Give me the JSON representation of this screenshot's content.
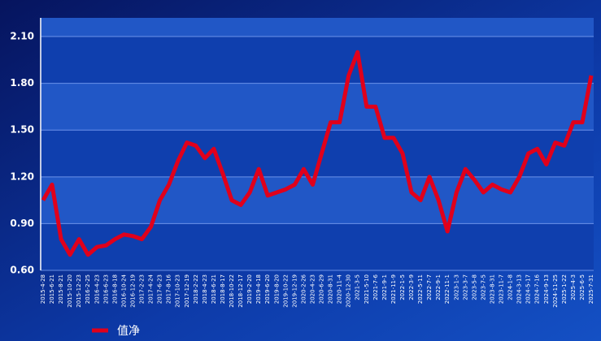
{
  "chart_data": {
    "type": "line",
    "categories": [
      "2015-4-28",
      "2015-6-21",
      "2015-8-21",
      "2015-10-20",
      "2015-12-23",
      "2016-2-25",
      "2016-4-23",
      "2016-6-23",
      "2016-8-18",
      "2016-10-24",
      "2016-12-19",
      "2017-2-23",
      "2017-4-24",
      "2017-6-23",
      "2017-8-16",
      "2017-10-23",
      "2017-12-19",
      "2018-2-22",
      "2018-4-23",
      "2018-6-21",
      "2018-8-17",
      "2018-10-22",
      "2018-12-17",
      "2019-2-20",
      "2019-4-18",
      "2019-6-20",
      "2019-8-20",
      "2019-10-22",
      "2019-12-19",
      "2020-2-26",
      "2020-4-23",
      "2020-6-29",
      "2020-8-31",
      "2020-11-4",
      "2020-12-30",
      "2021-3-5",
      "2021-5-10",
      "2021-7-6",
      "2021-9-1",
      "2021-11-9",
      "2022-1-5",
      "2022-3-9",
      "2022-5-11",
      "2022-7-7",
      "2022-9-1",
      "2022-11-1",
      "2023-1-3",
      "2023-3-7",
      "2023-5-8",
      "2023-7-5",
      "2023-8-31",
      "2023-11-7",
      "2024-1-8",
      "2024-3-13",
      "2024-5-17",
      "2024-7-16",
      "2024-9-13",
      "2024-11-25",
      "2025-1-22",
      "2025-4-3",
      "2025-6-5",
      "2025-7-31"
    ],
    "series": [
      {
        "name": "值净",
        "color": "#e0001b",
        "values": [
          1.05,
          1.15,
          0.8,
          0.7,
          0.8,
          0.7,
          0.75,
          0.76,
          0.8,
          0.83,
          0.82,
          0.8,
          0.88,
          1.05,
          1.15,
          1.3,
          1.42,
          1.4,
          1.32,
          1.38,
          1.22,
          1.05,
          1.02,
          1.1,
          1.25,
          1.08,
          1.1,
          1.12,
          1.15,
          1.25,
          1.15,
          1.35,
          1.55,
          1.55,
          1.85,
          2.0,
          1.65,
          1.65,
          1.45,
          1.45,
          1.35,
          1.1,
          1.05,
          1.2,
          1.05,
          0.85,
          1.1,
          1.25,
          1.18,
          1.1,
          1.15,
          1.12,
          1.1,
          1.2,
          1.35,
          1.38,
          1.28,
          1.42,
          1.4,
          1.55,
          1.55,
          1.85
        ]
      }
    ],
    "ylim": [
      0.6,
      2.22
    ],
    "yticks": [
      {
        "value": 0.6,
        "label": "0.60"
      },
      {
        "value": 0.9,
        "label": "0.90"
      },
      {
        "value": 1.2,
        "label": "1.20"
      },
      {
        "value": 1.5,
        "label": "1.50"
      },
      {
        "value": 1.8,
        "label": "1.80"
      },
      {
        "value": 2.1,
        "label": "2.10"
      }
    ],
    "grid": true
  }
}
